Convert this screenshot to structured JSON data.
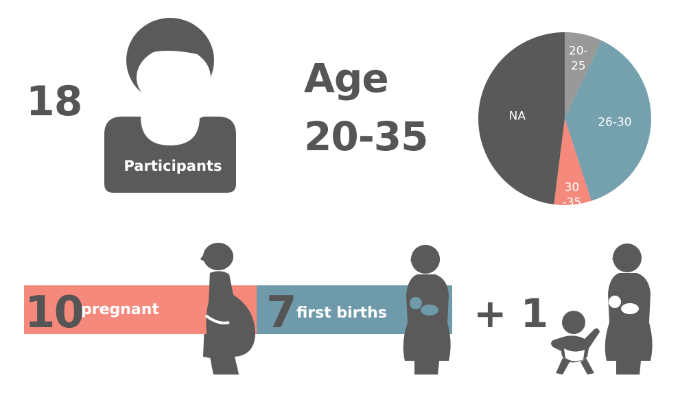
{
  "participants": {
    "count": "18",
    "label": "Participants"
  },
  "age": {
    "title": "Age",
    "range": "20-35"
  },
  "chart_data": {
    "type": "pie",
    "slices": [
      {
        "label": "20-25",
        "label_lines": [
          "20-",
          "25"
        ],
        "value": 7,
        "color": "#999999"
      },
      {
        "label": "26-30",
        "label_lines": [
          "26-30"
        ],
        "value": 38,
        "color": "#75a0ae"
      },
      {
        "label": "30-35",
        "label_lines": [
          "30",
          "-35"
        ],
        "value": 7,
        "color": "#f5897c"
      },
      {
        "label": "NA",
        "label_lines": [
          "NA"
        ],
        "value": 48,
        "color": "#595959"
      }
    ]
  },
  "pregnant": {
    "count": "10",
    "label": "pregnant"
  },
  "first_births": {
    "count": "7",
    "label": "first births"
  },
  "extra": {
    "label": "+ 1"
  },
  "colors": {
    "text": "#555555",
    "pink": "#f5897c",
    "blue": "#6f9aaa",
    "icon": "#5a5a5a"
  },
  "icons": [
    "woman-icon",
    "pregnant-woman-icon",
    "mother-with-baby-icon",
    "toddler-icon"
  ]
}
